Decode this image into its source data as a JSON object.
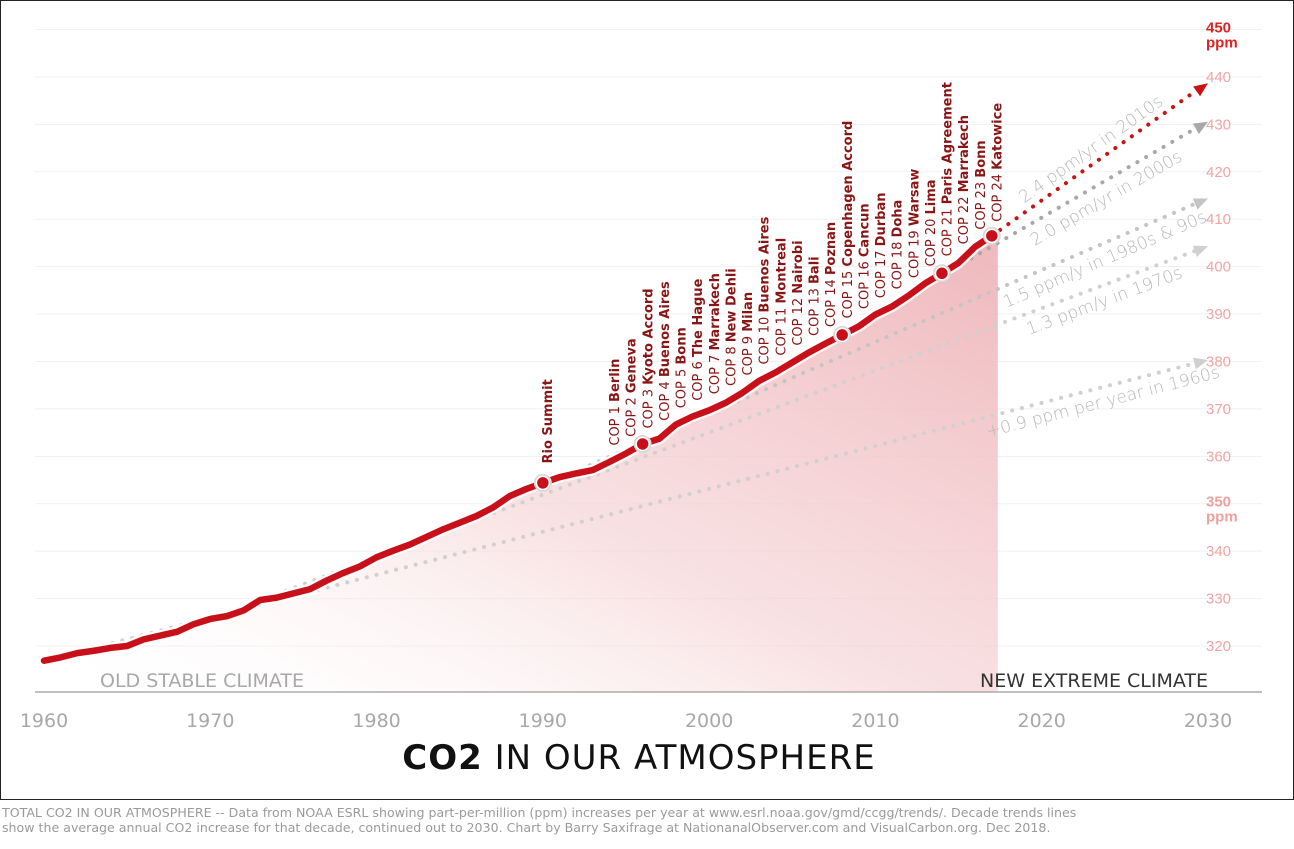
{
  "chart_data": {
    "type": "line",
    "title_bold": "CO2",
    "title_rest": " IN OUR ATMOSPHERE",
    "xlim": [
      1960,
      2030
    ],
    "ylim": [
      310,
      450
    ],
    "x_ticks": [
      1960,
      1970,
      1980,
      1990,
      2000,
      2010,
      2020,
      2030
    ],
    "y_ticks": [
      320,
      330,
      340,
      360,
      370,
      380,
      390,
      400,
      410,
      420,
      430,
      440
    ],
    "y_tick_450": {
      "value": "450",
      "unit": "ppm"
    },
    "y_tick_350": {
      "value": "350",
      "unit": "ppm"
    },
    "grid": true,
    "series": [
      {
        "x": [
          1960,
          1961,
          1962,
          1963,
          1964,
          1965,
          1966,
          1967,
          1968,
          1969,
          1970,
          1971,
          1972,
          1973,
          1974,
          1975,
          1976,
          1977,
          1978,
          1979,
          1980,
          1981,
          1982,
          1983,
          1984,
          1985,
          1986,
          1987,
          1988,
          1989,
          1990,
          1991,
          1992,
          1993,
          1994,
          1995,
          1996,
          1997,
          1998,
          1999,
          2000,
          2001,
          2002,
          2003,
          2004,
          2005,
          2006,
          2007,
          2008,
          2009,
          2010,
          2011,
          2012,
          2013,
          2014,
          2015,
          2016,
          2017
        ],
        "y": [
          316.9,
          317.6,
          318.5,
          319.0,
          319.6,
          320.0,
          321.4,
          322.2,
          323.0,
          324.6,
          325.7,
          326.3,
          327.5,
          329.7,
          330.2,
          331.1,
          332.0,
          333.8,
          335.4,
          336.8,
          338.7,
          340.1,
          341.4,
          343.0,
          344.6,
          346.0,
          347.4,
          349.2,
          351.6,
          353.1,
          354.4,
          355.6,
          356.4,
          357.1,
          358.8,
          360.6,
          362.6,
          363.7,
          366.7,
          368.4,
          369.7,
          371.3,
          373.4,
          375.9,
          377.7,
          379.8,
          381.9,
          383.8,
          385.6,
          387.4,
          389.9,
          391.6,
          393.9,
          396.5,
          398.6,
          400.8,
          404.2,
          406.5
        ],
        "color": "#c8101a"
      }
    ],
    "markers": [
      1990,
      1996,
      2008,
      2014,
      2017
    ],
    "trends": [
      {
        "label": "+0.9 ppm per year in 1960s",
        "start_year": 1960,
        "start_ppm": 316.9,
        "rate": 0.9,
        "end_year": 2030,
        "color": "#d0d0d0"
      },
      {
        "label": "1.3 ppm/y in 1970s",
        "start_year": 1970,
        "start_ppm": 325.7,
        "rate": 1.3,
        "end_year": 2030,
        "color": "#d0d0d0"
      },
      {
        "label": "1.5 ppm/y in 1980s & 90s",
        "start_year": 1980,
        "start_ppm": 338.7,
        "rate": 1.5,
        "end_year": 2030,
        "color": "#c4c4c4"
      },
      {
        "label": "2.0 ppm/yr in 2000s",
        "start_year": 2000,
        "start_ppm": 369.7,
        "rate": 2.0,
        "end_year": 2030,
        "color": "#a8a8a8"
      },
      {
        "label": "2.4 ppm/yr in 2010s",
        "start_year": 2017,
        "start_ppm": 406.5,
        "rate": 2.4,
        "end_year": 2030,
        "color": "#cc1111"
      }
    ],
    "events": [
      {
        "prefix": "",
        "name": "Rio Summit",
        "year": 1990
      },
      {
        "prefix": "COP 1 ",
        "name": "Berlin",
        "year": 1995
      },
      {
        "prefix": "COP 2 ",
        "name": "Geneva",
        "year": 1996
      },
      {
        "prefix": "COP 3 ",
        "name": "Kyoto Accord",
        "year": 1997
      },
      {
        "prefix": "COP 4 ",
        "name": "Buenos Aires",
        "year": 1998
      },
      {
        "prefix": "COP 5 ",
        "name": "Bonn",
        "year": 1999
      },
      {
        "prefix": "COP 6 ",
        "name": "The Hague",
        "year": 2000
      },
      {
        "prefix": "COP 7 ",
        "name": "Marrakech",
        "year": 2001
      },
      {
        "prefix": "COP 8 ",
        "name": "New Dehli",
        "year": 2002
      },
      {
        "prefix": "COP 9 ",
        "name": "Milan",
        "year": 2003
      },
      {
        "prefix": "COP 10 ",
        "name": "Buenos Aires",
        "year": 2004
      },
      {
        "prefix": "COP 11 ",
        "name": "Montreal",
        "year": 2005
      },
      {
        "prefix": "COP 12 ",
        "name": "Nairobi",
        "year": 2006
      },
      {
        "prefix": "COP 13 ",
        "name": "Bali",
        "year": 2007
      },
      {
        "prefix": "COP 14 ",
        "name": "Poznan",
        "year": 2008
      },
      {
        "prefix": "COP 15 ",
        "name": "Copenhagen Accord",
        "year": 2009
      },
      {
        "prefix": "COP 16 ",
        "name": "Cancun",
        "year": 2010
      },
      {
        "prefix": "COP 17 ",
        "name": "Durban",
        "year": 2011
      },
      {
        "prefix": "COP 18 ",
        "name": "Doha",
        "year": 2012
      },
      {
        "prefix": "COP 19 ",
        "name": "Warsaw",
        "year": 2013
      },
      {
        "prefix": "COP 20 ",
        "name": "Lima",
        "year": 2014
      },
      {
        "prefix": "COP 21 ",
        "name": "Paris Agreement",
        "year": 2015
      },
      {
        "prefix": "COP 22 ",
        "name": "Marrakech",
        "year": 2016
      },
      {
        "prefix": "COP 23 ",
        "name": "Bonn",
        "year": 2017
      },
      {
        "prefix": "COP 24 ",
        "name": "Katowice",
        "year": 2018
      }
    ],
    "zone_left": "OLD STABLE CLIMATE",
    "zone_right": "NEW EXTREME CLIMATE"
  },
  "footer": {
    "line1": "TOTAL CO2 IN OUR ATMOSPHERE -- Data from NOAA ESRL showing part-per-million (ppm) increases per year at www.esrl.noaa.gov/gmd/ccgg/trends/. Decade trends lines",
    "line2": "show the average annual CO2 increase for that decade, continued out to 2030. Chart by Barry Saxifrage at NationanalObserver.com and VisualCarbon.org. Dec 2018."
  }
}
